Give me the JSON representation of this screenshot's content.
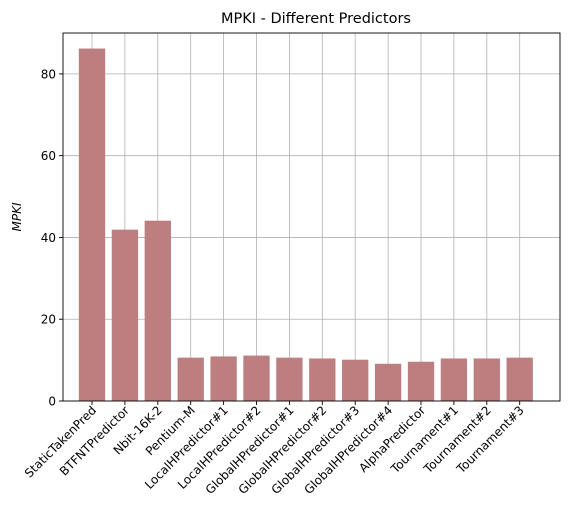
{
  "chart_data": {
    "type": "bar",
    "title": "MPKI - Different Predictors",
    "xlabel": "",
    "ylabel": "MPKI",
    "categories": [
      "StaticTakenPred",
      "BTFNTPredictor",
      "Nbit-16K-2",
      "Pentium-M",
      "LocalHPredictor#1",
      "LocalHPredictor#2",
      "GlobalHPredictor#1",
      "GlobalHPredictor#2",
      "GlobalHPredictor#3",
      "GlobalHPredictor#4",
      "AlphaPredictor",
      "Tournament#1",
      "Tournament#2",
      "Tournament#3"
    ],
    "values": [
      86.2,
      41.9,
      44.1,
      10.6,
      10.9,
      11.1,
      10.6,
      10.4,
      10.1,
      9.1,
      9.6,
      10.4,
      10.4,
      10.6
    ],
    "ylim": [
      0,
      90
    ],
    "yticks": [
      0,
      20,
      40,
      60,
      80
    ],
    "grid": true,
    "bar_color": "#bc7e7e"
  }
}
